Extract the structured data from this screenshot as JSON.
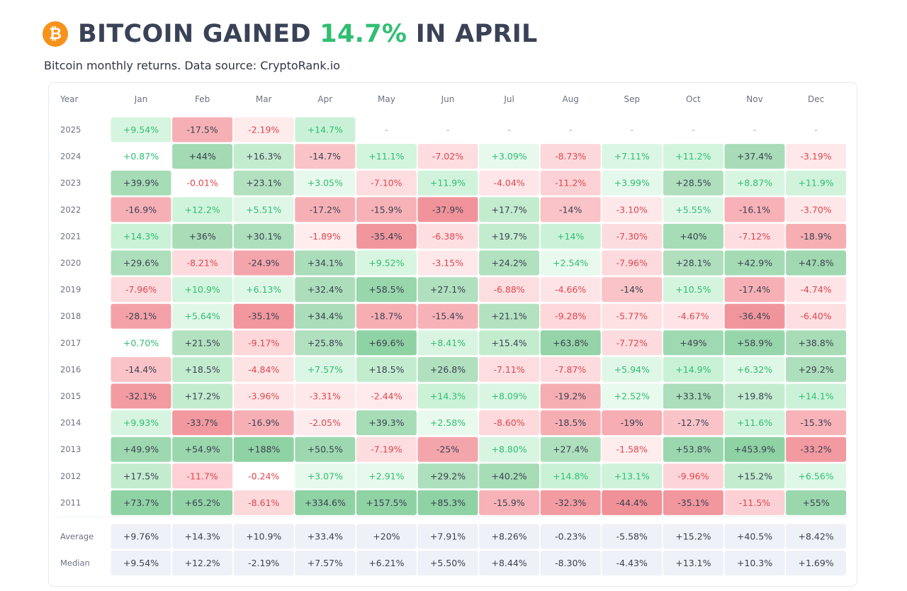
{
  "header": {
    "title_pre": "BITCOIN GAINED ",
    "title_highlight": "14.7%",
    "title_post": " IN APRIL",
    "icon": "bitcoin-icon",
    "icon_glyph": "₿",
    "subtitle": "Bitcoin monthly returns. Data source: CryptoRank.io"
  },
  "colors": {
    "green_text": "#2fbf71",
    "red_text": "#e0464d",
    "neutral_text": "#3b4151",
    "summary_bg": "#eef1f7",
    "bitcoin_orange": "#f7931a"
  },
  "chart_data": {
    "type": "heatmap",
    "title": "BITCOIN GAINED 14.7% IN APRIL",
    "subtitle": "Bitcoin monthly returns. Data source: CryptoRank.io",
    "corner_label": "Year",
    "columns": [
      "Jan",
      "Feb",
      "Mar",
      "Apr",
      "May",
      "Jun",
      "Jul",
      "Aug",
      "Sep",
      "Oct",
      "Nov",
      "Dec"
    ],
    "rows": [
      {
        "year": "2025",
        "values": [
          "+9.54%",
          "-17.5%",
          "-2.19%",
          "+14.7%",
          "-",
          "-",
          "-",
          "-",
          "-",
          "-",
          "-",
          "-"
        ]
      },
      {
        "year": "2024",
        "values": [
          "+0.87%",
          "+44%",
          "+16.3%",
          "-14.7%",
          "+11.1%",
          "-7.02%",
          "+3.09%",
          "-8.73%",
          "+7.11%",
          "+11.2%",
          "+37.4%",
          "-3.19%"
        ]
      },
      {
        "year": "2023",
        "values": [
          "+39.9%",
          "-0.01%",
          "+23.1%",
          "+3.05%",
          "-7.10%",
          "+11.9%",
          "-4.04%",
          "-11.2%",
          "+3.99%",
          "+28.5%",
          "+8.87%",
          "+11.9%"
        ]
      },
      {
        "year": "2022",
        "values": [
          "-16.9%",
          "+12.2%",
          "+5.51%",
          "-17.2%",
          "-15.9%",
          "-37.9%",
          "+17.7%",
          "-14%",
          "-3.10%",
          "+5.55%",
          "-16.1%",
          "-3.70%"
        ]
      },
      {
        "year": "2021",
        "values": [
          "+14.3%",
          "+36%",
          "+30.1%",
          "-1.89%",
          "-35.4%",
          "-6.38%",
          "+19.7%",
          "+14%",
          "-7.30%",
          "+40%",
          "-7.12%",
          "-18.9%"
        ]
      },
      {
        "year": "2020",
        "values": [
          "+29.6%",
          "-8.21%",
          "-24.9%",
          "+34.1%",
          "+9.52%",
          "-3.15%",
          "+24.2%",
          "+2.54%",
          "-7.96%",
          "+28.1%",
          "+42.9%",
          "+47.8%"
        ]
      },
      {
        "year": "2019",
        "values": [
          "-7.96%",
          "+10.9%",
          "+6.13%",
          "+32.4%",
          "+58.5%",
          "+27.1%",
          "-6.88%",
          "-4.66%",
          "-14%",
          "+10.5%",
          "-17.4%",
          "-4.74%"
        ]
      },
      {
        "year": "2018",
        "values": [
          "-28.1%",
          "+5.64%",
          "-35.1%",
          "+34.4%",
          "-18.7%",
          "-15.4%",
          "+21.1%",
          "-9.28%",
          "-5.77%",
          "-4.67%",
          "-36.4%",
          "-6.40%"
        ]
      },
      {
        "year": "2017",
        "values": [
          "+0.70%",
          "+21.5%",
          "-9.17%",
          "+25.8%",
          "+69.6%",
          "+8.41%",
          "+15.4%",
          "+63.8%",
          "-7.72%",
          "+49%",
          "+58.9%",
          "+38.8%"
        ]
      },
      {
        "year": "2016",
        "values": [
          "-14.4%",
          "+18.5%",
          "-4.84%",
          "+7.57%",
          "+18.5%",
          "+26.8%",
          "-7.11%",
          "-7.87%",
          "+5.94%",
          "+14.9%",
          "+6.32%",
          "+29.2%"
        ]
      },
      {
        "year": "2015",
        "values": [
          "-32.1%",
          "+17.2%",
          "-3.96%",
          "-3.31%",
          "-2.44%",
          "+14.3%",
          "+8.09%",
          "-19.2%",
          "+2.52%",
          "+33.1%",
          "+19.8%",
          "+14.1%"
        ]
      },
      {
        "year": "2014",
        "values": [
          "+9.93%",
          "-33.7%",
          "-16.9%",
          "-2.05%",
          "+39.3%",
          "+2.58%",
          "-8.60%",
          "-18.5%",
          "-19%",
          "-12.7%",
          "+11.6%",
          "-15.3%"
        ]
      },
      {
        "year": "2013",
        "values": [
          "+49.9%",
          "+54.9%",
          "+188%",
          "+50.5%",
          "-7.19%",
          "-25%",
          "+8.80%",
          "+27.4%",
          "-1.58%",
          "+53.8%",
          "+453.9%",
          "-33.2%"
        ]
      },
      {
        "year": "2012",
        "values": [
          "+17.5%",
          "-11.7%",
          "-0.24%",
          "+3.07%",
          "+2.91%",
          "+29.2%",
          "+40.2%",
          "+14.8%",
          "+13.1%",
          "-9.96%",
          "+15.2%",
          "+6.56%"
        ]
      },
      {
        "year": "2011",
        "values": [
          "+73.7%",
          "+65.2%",
          "-8.61%",
          "+334.6%",
          "+157.5%",
          "+85.3%",
          "-15.9%",
          "-32.3%",
          "-44.4%",
          "-35.1%",
          "-11.5%",
          "+55%"
        ]
      }
    ],
    "summary_rows": [
      {
        "label": "Average",
        "values": [
          "+9.76%",
          "+14.3%",
          "+10.9%",
          "+33.4%",
          "+20%",
          "+7.91%",
          "+8.26%",
          "-0.23%",
          "-5.58%",
          "+15.2%",
          "+40.5%",
          "+8.42%"
        ]
      },
      {
        "label": "Median",
        "values": [
          "+9.54%",
          "+12.2%",
          "-2.19%",
          "+7.57%",
          "+6.21%",
          "+5.50%",
          "+8.44%",
          "-8.30%",
          "-4.43%",
          "+13.1%",
          "+10.3%",
          "+1.69%"
        ]
      }
    ]
  }
}
